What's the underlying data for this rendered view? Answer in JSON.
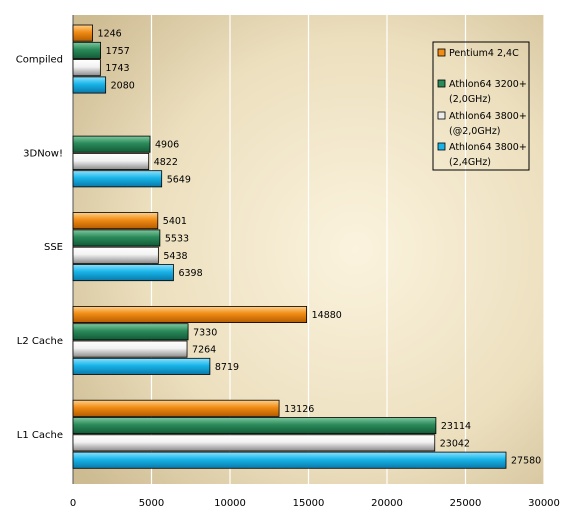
{
  "chart_data": {
    "type": "bar",
    "orientation": "horizontal",
    "categories": [
      "Compiled",
      "3DNow!",
      "SSE",
      "L2 Cache",
      "L1 Cache"
    ],
    "series": [
      {
        "name": "Pentium4 2,4C",
        "values": [
          1246,
          null,
          5401,
          14880,
          13126
        ],
        "color": "#f08c14"
      },
      {
        "name": "Athlon64 3200+ (2,0GHz)",
        "values": [
          1757,
          4906,
          5533,
          7330,
          23114
        ],
        "color": "#2a8a5a"
      },
      {
        "name": "Athlon64 3800+ (@2,0GHz)",
        "values": [
          1743,
          4822,
          5438,
          7264,
          23042
        ],
        "color": "#ececec"
      },
      {
        "name": "Athlon64 3800+ (2,4GHz)",
        "values": [
          2080,
          5649,
          6398,
          8719,
          27580
        ],
        "color": "#18b4e8"
      }
    ],
    "legend_lines": [
      [
        "Pentium4 2,4C"
      ],
      [
        "Athlon64 3200+",
        "(2,0GHz)"
      ],
      [
        "Athlon64 3800+",
        "(@2,0GHz)"
      ],
      [
        "Athlon64 3800+",
        "(2,4GHz)"
      ]
    ],
    "xlim": [
      0,
      30000
    ],
    "xticks": [
      0,
      5000,
      10000,
      15000,
      20000,
      25000,
      30000
    ],
    "grid": true,
    "legend_position": "top-right",
    "title": "",
    "xlabel": "",
    "ylabel": ""
  }
}
